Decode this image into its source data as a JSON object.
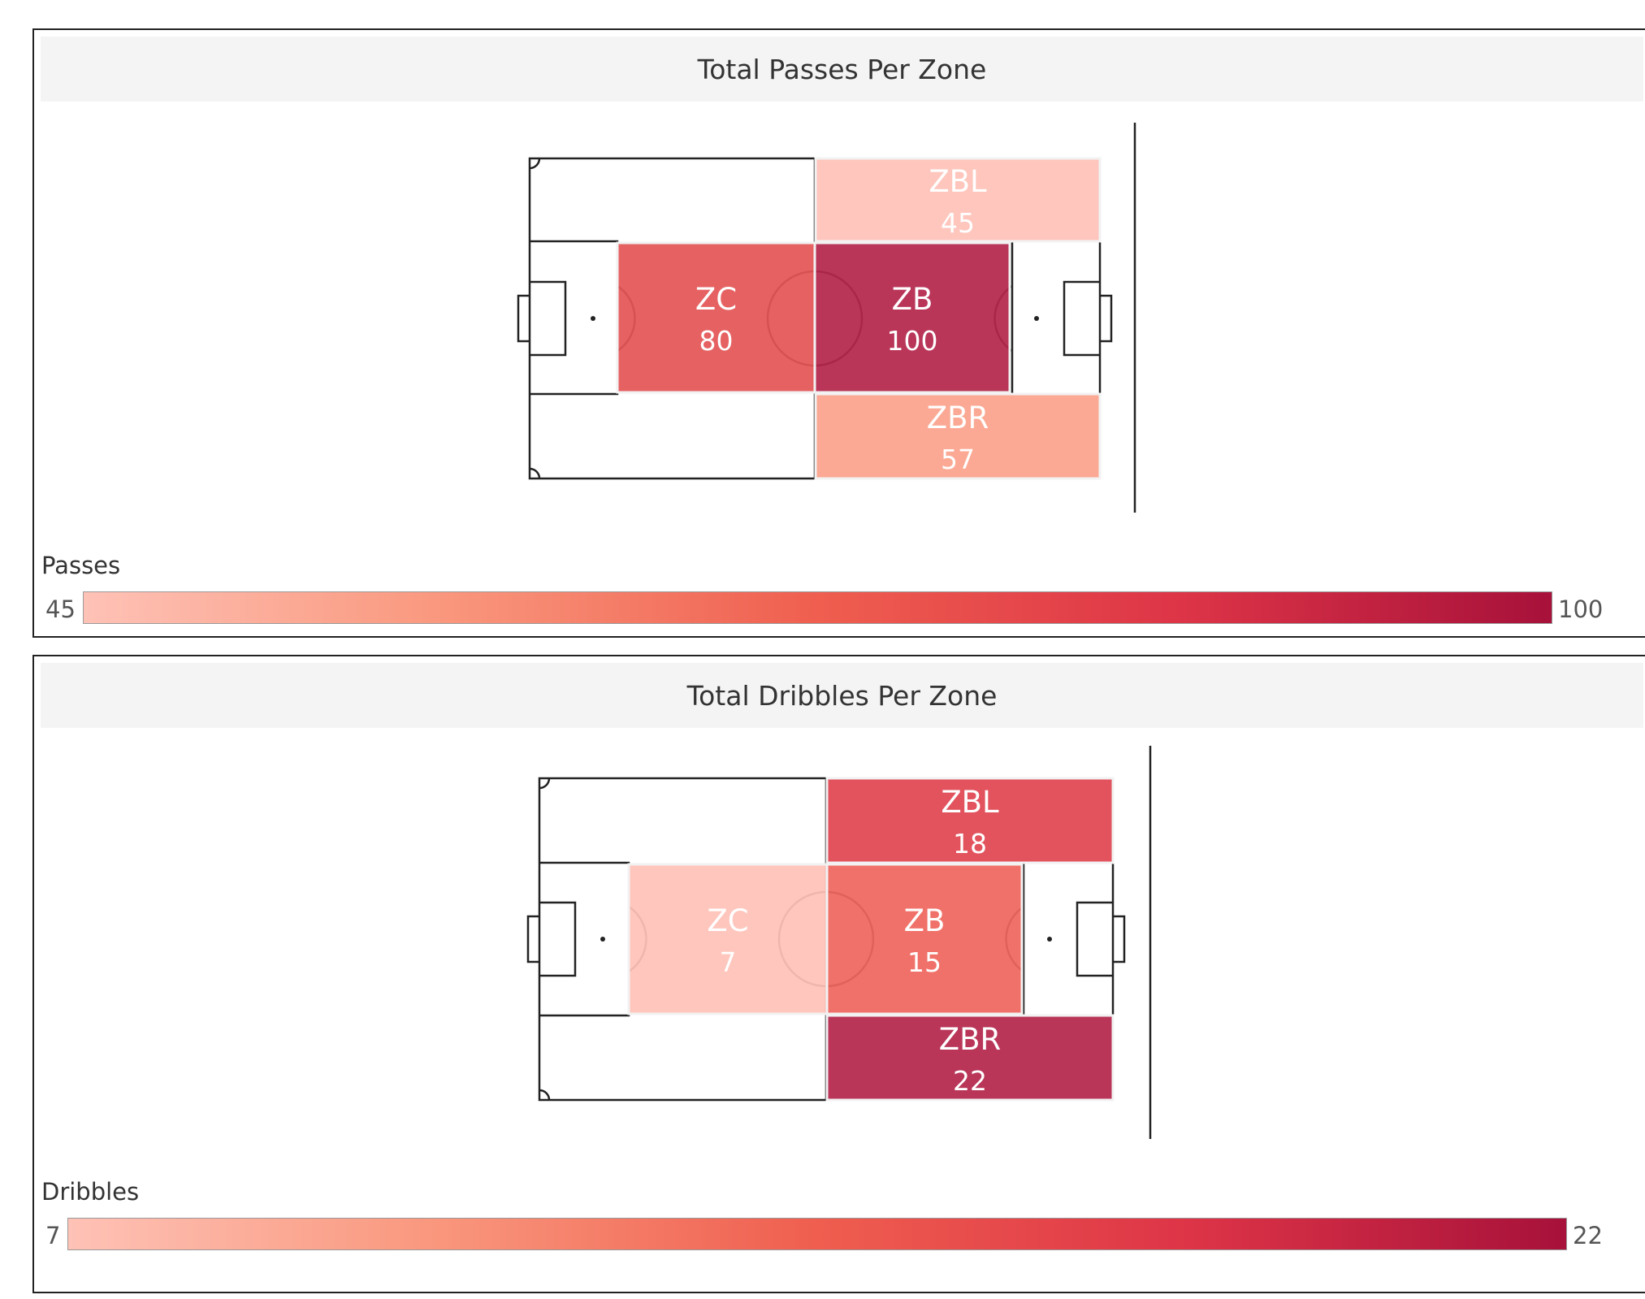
{
  "scale": {
    "low_color": "#fec2b6",
    "high_color": "#a7113a"
  },
  "passes": {
    "title": "Total Passes Per Zone",
    "legend": {
      "title": "Passes",
      "min_label": "45",
      "max_label": "100"
    },
    "zones": [
      {
        "name": "ZBL",
        "value": "45",
        "color": "#fec2b8",
        "text_color": "#ffffff"
      },
      {
        "name": "ZC",
        "value": "80",
        "color": "#e45656",
        "text_color": "#ffffff"
      },
      {
        "name": "ZB",
        "value": "100",
        "color": "#b4274c",
        "text_color": "#ffffff"
      },
      {
        "name": "ZBR",
        "value": "57",
        "color": "#fba28c",
        "text_color": "#ffffff"
      }
    ]
  },
  "dribbles": {
    "title": "Total Dribbles Per Zone",
    "legend": {
      "title": "Dribbles",
      "min_label": "7",
      "max_label": "22"
    },
    "zones": [
      {
        "name": "ZBL",
        "value": "18",
        "color": "#e04652",
        "text_color": "#ffffff"
      },
      {
        "name": "ZC",
        "value": "7",
        "color": "#fec2b8",
        "text_color": "#ffffff"
      },
      {
        "name": "ZB",
        "value": "15",
        "color": "#ef665e",
        "text_color": "#ffffff"
      },
      {
        "name": "ZBR",
        "value": "22",
        "color": "#b4274c",
        "text_color": "#ffffff"
      }
    ]
  },
  "chart_data": [
    {
      "type": "heatmap",
      "title": "Total Passes Per Zone",
      "legend_title": "Passes",
      "categories": [
        "ZBL",
        "ZC",
        "ZB",
        "ZBR"
      ],
      "values": [
        45,
        80,
        100,
        57
      ],
      "color_range": [
        45,
        100
      ]
    },
    {
      "type": "heatmap",
      "title": "Total Dribbles Per Zone",
      "legend_title": "Dribbles",
      "categories": [
        "ZBL",
        "ZC",
        "ZB",
        "ZBR"
      ],
      "values": [
        18,
        7,
        15,
        22
      ],
      "color_range": [
        7,
        22
      ]
    }
  ]
}
